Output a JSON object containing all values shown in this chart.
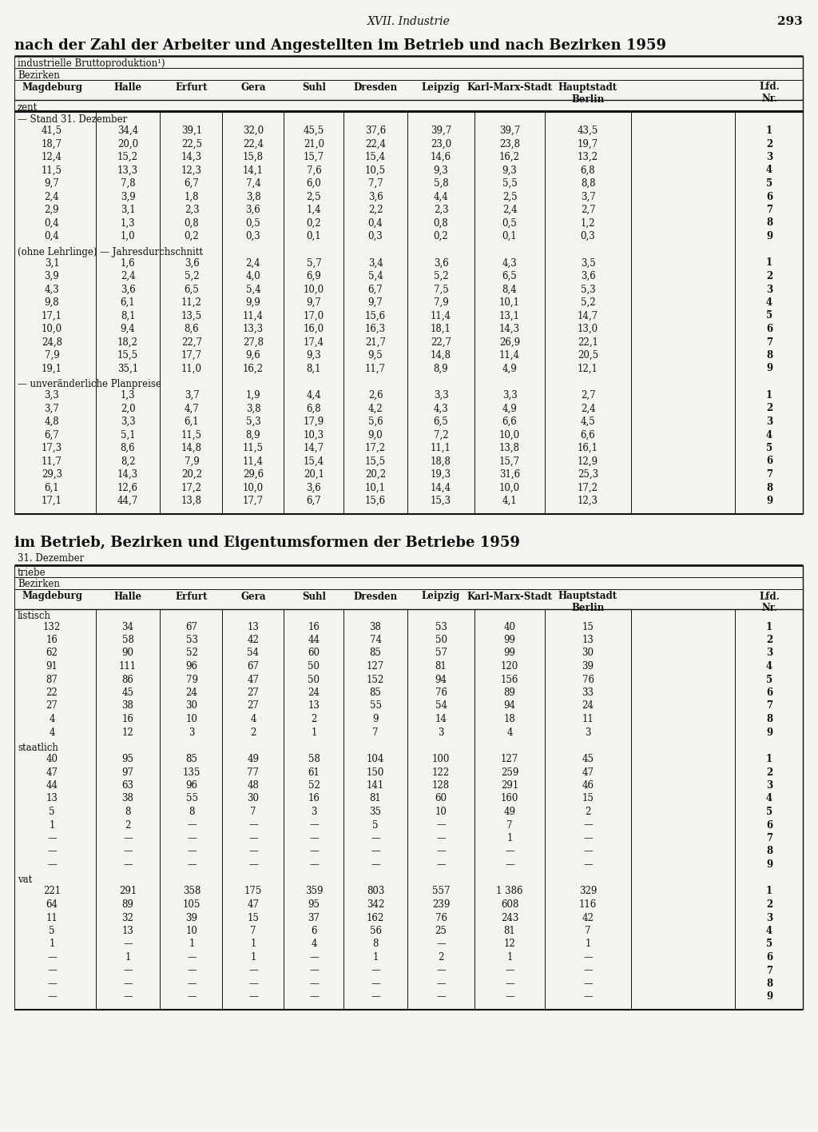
{
  "page_header": "XVII. Industrie",
  "page_number": "293",
  "section1_title": "nach der Zahl der Arbeiter und Angestellten im Betrieb und nach Bezirken 1959",
  "section1_subtitle1": "industrielle Bruttoproduktion¹)",
  "section1_subtitle2": "Bezirken",
  "section2_title": "im Betrieb, Bezirken und Eigentumsformen der Betriebe 1959",
  "section2_subtitle": "31. Dezember",
  "col_label_triebe": "triebe",
  "col_label_bezirken": "Bezirken",
  "section1_label_zent": "zent",
  "section1_block1_label": "— Stand 31. Dezember",
  "section1_block1": [
    [
      "41,5",
      "34,4",
      "39,1",
      "32,0",
      "45,5",
      "37,6",
      "39,7",
      "39,7",
      "43,5",
      "1"
    ],
    [
      "18,7",
      "20,0",
      "22,5",
      "22,4",
      "21,0",
      "22,4",
      "23,0",
      "23,8",
      "19,7",
      "2"
    ],
    [
      "12,4",
      "15,2",
      "14,3",
      "15,8",
      "15,7",
      "15,4",
      "14,6",
      "16,2",
      "13,2",
      "3"
    ],
    [
      "11,5",
      "13,3",
      "12,3",
      "14,1",
      "7,6",
      "10,5",
      "9,3",
      "9,3",
      "6,8",
      "4"
    ],
    [
      "9,7",
      "7,8",
      "6,7",
      "7,4",
      "6,0",
      "7,7",
      "5,8",
      "5,5",
      "8,8",
      "5"
    ],
    [
      "2,4",
      "3,9",
      "1,8",
      "3,8",
      "2,5",
      "3,6",
      "4,4",
      "2,5",
      "3,7",
      "6"
    ],
    [
      "2,9",
      "3,1",
      "2,3",
      "3,6",
      "1,4",
      "2,2",
      "2,3",
      "2,4",
      "2,7",
      "7"
    ],
    [
      "0,4",
      "1,3",
      "0,8",
      "0,5",
      "0,2",
      "0,4",
      "0,8",
      "0,5",
      "1,2",
      "8"
    ],
    [
      "0,4",
      "1,0",
      "0,2",
      "0,3",
      "0,1",
      "0,3",
      "0,2",
      "0,1",
      "0,3",
      "9"
    ]
  ],
  "section1_block2_label": "(ohne Lehrlinge) — Jahresdurchschnitt",
  "section1_block2": [
    [
      "3,1",
      "1,6",
      "3,6",
      "2,4",
      "5,7",
      "3,4",
      "3,6",
      "4,3",
      "3,5",
      "1"
    ],
    [
      "3,9",
      "2,4",
      "5,2",
      "4,0",
      "6,9",
      "5,4",
      "5,2",
      "6,5",
      "3,6",
      "2"
    ],
    [
      "4,3",
      "3,6",
      "6,5",
      "5,4",
      "10,0",
      "6,7",
      "7,5",
      "8,4",
      "5,3",
      "3"
    ],
    [
      "9,8",
      "6,1",
      "11,2",
      "9,9",
      "9,7",
      "9,7",
      "7,9",
      "10,1",
      "5,2",
      "4"
    ],
    [
      "17,1",
      "8,1",
      "13,5",
      "11,4",
      "17,0",
      "15,6",
      "11,4",
      "13,1",
      "14,7",
      "5"
    ],
    [
      "10,0",
      "9,4",
      "8,6",
      "13,3",
      "16,0",
      "16,3",
      "18,1",
      "14,3",
      "13,0",
      "6"
    ],
    [
      "24,8",
      "18,2",
      "22,7",
      "27,8",
      "17,4",
      "21,7",
      "22,7",
      "26,9",
      "22,1",
      "7"
    ],
    [
      "7,9",
      "15,5",
      "17,7",
      "9,6",
      "9,3",
      "9,5",
      "14,8",
      "11,4",
      "20,5",
      "8"
    ],
    [
      "19,1",
      "35,1",
      "11,0",
      "16,2",
      "8,1",
      "11,7",
      "8,9",
      "4,9",
      "12,1",
      "9"
    ]
  ],
  "section1_block3_label": "— unveränderliche Planpreise",
  "section1_block3": [
    [
      "3,3",
      "1,3",
      "3,7",
      "1,9",
      "4,4",
      "2,6",
      "3,3",
      "3,3",
      "2,7",
      "1"
    ],
    [
      "3,7",
      "2,0",
      "4,7",
      "3,8",
      "6,8",
      "4,2",
      "4,3",
      "4,9",
      "2,4",
      "2"
    ],
    [
      "4,8",
      "3,3",
      "6,1",
      "5,3",
      "17,9",
      "5,6",
      "6,5",
      "6,6",
      "4,5",
      "3"
    ],
    [
      "6,7",
      "5,1",
      "11,5",
      "8,9",
      "10,3",
      "9,0",
      "7,2",
      "10,0",
      "6,6",
      "4"
    ],
    [
      "17,3",
      "8,6",
      "14,8",
      "11,5",
      "14,7",
      "17,2",
      "11,1",
      "13,8",
      "16,1",
      "5"
    ],
    [
      "11,7",
      "8,2",
      "7,9",
      "11,4",
      "15,4",
      "15,5",
      "18,8",
      "15,7",
      "12,9",
      "6"
    ],
    [
      "29,3",
      "14,3",
      "20,2",
      "29,6",
      "20,1",
      "20,2",
      "19,3",
      "31,6",
      "25,3",
      "7"
    ],
    [
      "6,1",
      "12,6",
      "17,2",
      "10,0",
      "3,6",
      "10,1",
      "14,4",
      "10,0",
      "17,2",
      "8"
    ],
    [
      "17,1",
      "44,7",
      "13,8",
      "17,7",
      "6,7",
      "15,6",
      "15,3",
      "4,1",
      "12,3",
      "9"
    ]
  ],
  "section2_label_listisch": "listisch",
  "section2_block1": [
    [
      "132",
      "34",
      "67",
      "13",
      "16",
      "38",
      "53",
      "40",
      "15",
      "1"
    ],
    [
      "16",
      "58",
      "53",
      "42",
      "44",
      "74",
      "50",
      "99",
      "13",
      "2"
    ],
    [
      "62",
      "90",
      "52",
      "54",
      "60",
      "85",
      "57",
      "99",
      "30",
      "3"
    ],
    [
      "91",
      "111",
      "96",
      "67",
      "50",
      "127",
      "81",
      "120",
      "39",
      "4"
    ],
    [
      "87",
      "86",
      "79",
      "47",
      "50",
      "152",
      "94",
      "156",
      "76",
      "5"
    ],
    [
      "22",
      "45",
      "24",
      "27",
      "24",
      "85",
      "76",
      "89",
      "33",
      "6"
    ],
    [
      "27",
      "38",
      "30",
      "27",
      "13",
      "55",
      "54",
      "94",
      "24",
      "7"
    ],
    [
      "4",
      "16",
      "10",
      "4",
      "2",
      "9",
      "14",
      "18",
      "11",
      "8"
    ],
    [
      "4",
      "12",
      "3",
      "2",
      "1",
      "7",
      "3",
      "4",
      "3",
      "9"
    ]
  ],
  "section2_label_staatlich": "staatlich",
  "section2_block2": [
    [
      "40",
      "95",
      "85",
      "49",
      "58",
      "104",
      "100",
      "127",
      "45",
      "1"
    ],
    [
      "47",
      "97",
      "135",
      "77",
      "61",
      "150",
      "122",
      "259",
      "47",
      "2"
    ],
    [
      "44",
      "63",
      "96",
      "48",
      "52",
      "141",
      "128",
      "291",
      "46",
      "3"
    ],
    [
      "13",
      "38",
      "55",
      "30",
      "16",
      "81",
      "60",
      "160",
      "15",
      "4"
    ],
    [
      "5",
      "8",
      "8",
      "7",
      "3",
      "35",
      "10",
      "49",
      "2",
      "5"
    ],
    [
      "1",
      "2",
      "—",
      "—",
      "—",
      "5",
      "—",
      "7",
      "—",
      "6"
    ],
    [
      "—",
      "—",
      "—",
      "—",
      "—",
      "—",
      "—",
      "1",
      "—",
      "7"
    ],
    [
      "—",
      "—",
      "—",
      "—",
      "—",
      "—",
      "—",
      "—",
      "—",
      "8"
    ],
    [
      "—",
      "—",
      "—",
      "—",
      "—",
      "—",
      "—",
      "—",
      "—",
      "9"
    ]
  ],
  "section2_label_vat": "vat",
  "section2_block3": [
    [
      "221",
      "291",
      "358",
      "175",
      "359",
      "803",
      "557",
      "1 386",
      "329",
      "1"
    ],
    [
      "64",
      "89",
      "105",
      "47",
      "95",
      "342",
      "239",
      "608",
      "116",
      "2"
    ],
    [
      "11",
      "32",
      "39",
      "15",
      "37",
      "162",
      "76",
      "243",
      "42",
      "3"
    ],
    [
      "5",
      "13",
      "10",
      "7",
      "6",
      "56",
      "25",
      "81",
      "7",
      "4"
    ],
    [
      "1",
      "—",
      "1",
      "1",
      "4",
      "8",
      "—",
      "12",
      "1",
      "5"
    ],
    [
      "—",
      "1",
      "—",
      "1",
      "—",
      "1",
      "2",
      "1",
      "—",
      "6"
    ],
    [
      "—",
      "—",
      "—",
      "—",
      "—",
      "—",
      "—",
      "—",
      "—",
      "7"
    ],
    [
      "—",
      "—",
      "—",
      "—",
      "—",
      "—",
      "—",
      "—",
      "—",
      "8"
    ],
    [
      "—",
      "—",
      "—",
      "—",
      "—",
      "—",
      "—",
      "—",
      "—",
      "9"
    ]
  ],
  "bg_color": "#f5f3ef",
  "text_color": "#111111"
}
